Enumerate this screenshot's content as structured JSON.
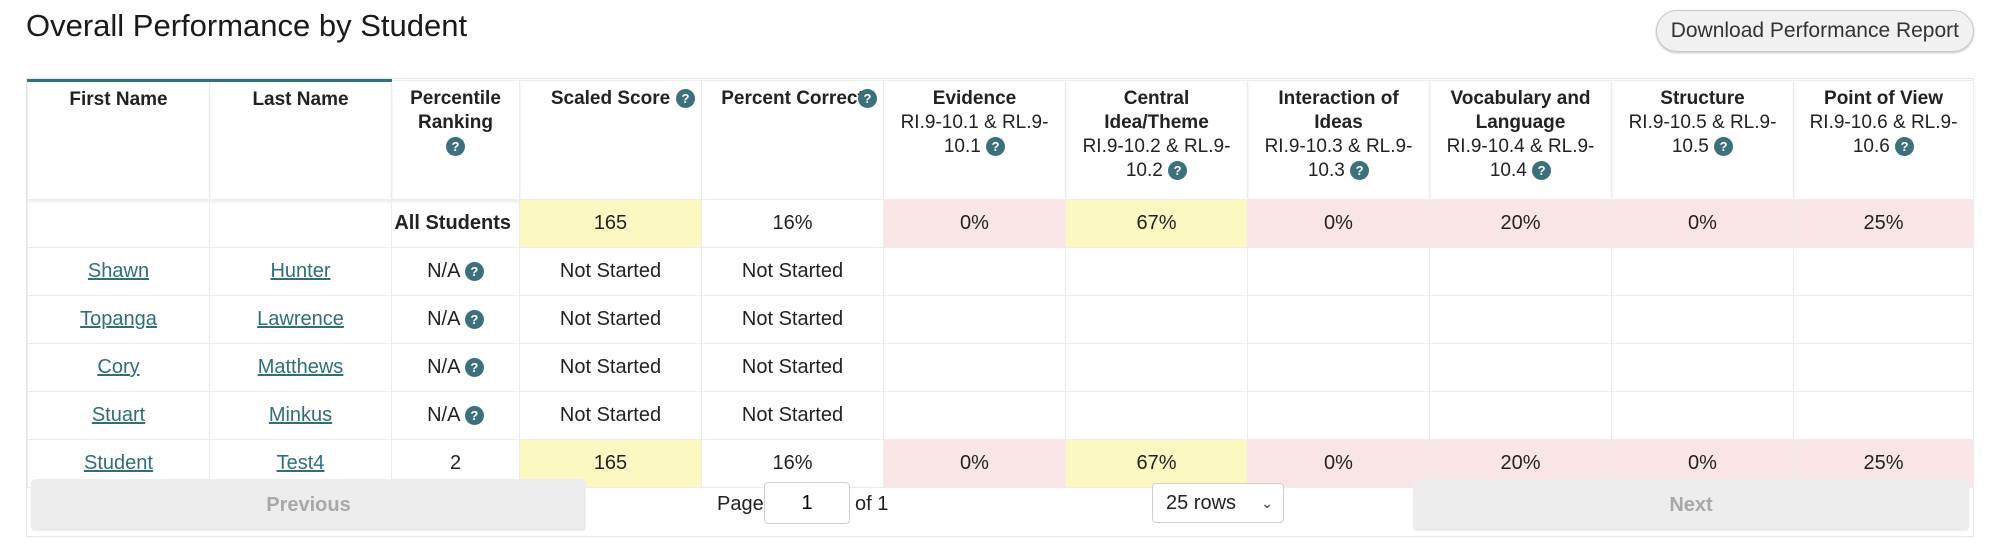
{
  "page": {
    "title": "Overall Performance by Student",
    "download_label": "Download Performance Report"
  },
  "table": {
    "headers": {
      "first_name": "First Name",
      "last_name": "Last Name",
      "percentile": "Percentile Ranking",
      "scaled_score": "Scaled Score",
      "percent_correct": "Percent Correct",
      "evidence": {
        "title": "Evidence",
        "sub": "RI.9-10.1 & RL.9-10.1"
      },
      "central": {
        "title": "Central Idea/Theme",
        "sub": "RI.9-10.2 & RL.9-10.2"
      },
      "interaction": {
        "title": "Interaction of Ideas",
        "sub": "RI.9-10.3 & RL.9-10.3"
      },
      "vocab": {
        "title": "Vocabulary and Language",
        "sub": "RI.9-10.4 & RL.9-10.4"
      },
      "structure": {
        "title": "Structure",
        "sub": "RI.9-10.5 & RL.9-10.5"
      },
      "pov": {
        "title": "Point of View",
        "sub": "RI.9-10.6 & RL.9-10.6"
      }
    },
    "help_icon": "question-circle-icon",
    "summary_row": {
      "label": "All Students",
      "scaled_score": "165",
      "percent_correct": "16%",
      "evidence": "0%",
      "central": "67%",
      "interaction": "0%",
      "vocab": "20%",
      "structure": "0%",
      "pov": "25%"
    },
    "rows": [
      {
        "first": "Shawn",
        "last": "Hunter",
        "percentile": "N/A",
        "scaled": "Not Started",
        "percent": "Not Started"
      },
      {
        "first": "Topanga",
        "last": "Lawrence",
        "percentile": "N/A",
        "scaled": "Not Started",
        "percent": "Not Started"
      },
      {
        "first": "Cory",
        "last": "Matthews",
        "percentile": "N/A",
        "scaled": "Not Started",
        "percent": "Not Started"
      },
      {
        "first": "Stuart",
        "last": "Minkus",
        "percentile": "N/A",
        "scaled": "Not Started",
        "percent": "Not Started"
      },
      {
        "first": "Student",
        "last": "Test4",
        "percentile": "2",
        "scaled": "165",
        "percent": "16%",
        "evidence": "0%",
        "central": "67%",
        "interaction": "0%",
        "vocab": "20%",
        "structure": "0%",
        "pov": "25%"
      }
    ]
  },
  "pagination": {
    "previous_label": "Previous",
    "page_label": "Page",
    "page_value": "1",
    "of_label": "of 1",
    "rows_label": "25 rows",
    "next_label": "Next"
  },
  "colors": {
    "accent": "#38707a",
    "highlight_yellow": "#fbf8c2",
    "highlight_pink": "#fae5e6"
  }
}
